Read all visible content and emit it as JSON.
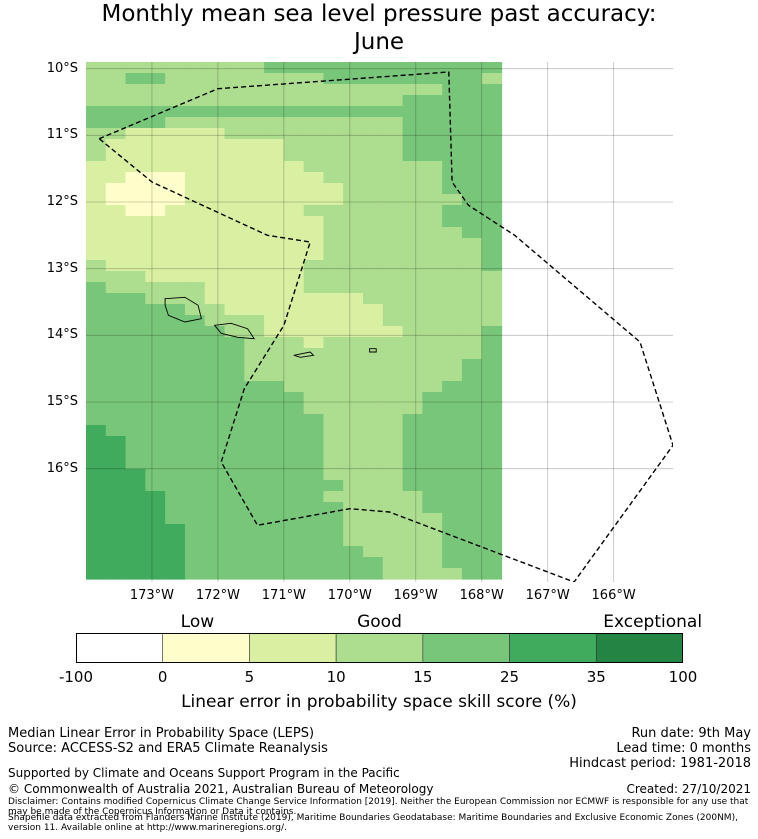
{
  "title_line1": "Monthly mean sea level pressure past accuracy:",
  "title_line2": "June",
  "map": {
    "lon_min": -174.0,
    "lon_max": -165.1,
    "lat_min": -17.7,
    "lat_max": -9.9,
    "lat_ticks": [
      {
        "v": -10,
        "label": "10°S"
      },
      {
        "v": -11,
        "label": "11°S"
      },
      {
        "v": -12,
        "label": "12°S"
      },
      {
        "v": -13,
        "label": "13°S"
      },
      {
        "v": -14,
        "label": "14°S"
      },
      {
        "v": -15,
        "label": "15°S"
      },
      {
        "v": -16,
        "label": "16°S"
      }
    ],
    "lon_ticks": [
      {
        "v": -173,
        "label": "173°W"
      },
      {
        "v": -172,
        "label": "172°W"
      },
      {
        "v": -171,
        "label": "171°W"
      },
      {
        "v": -170,
        "label": "170°W"
      },
      {
        "v": -169,
        "label": "169°W"
      },
      {
        "v": -168,
        "label": "168°W"
      },
      {
        "v": -167,
        "label": "167°W"
      },
      {
        "v": -166,
        "label": "166°W"
      }
    ],
    "eez_boundary": [
      [
        -173.8,
        -11.05
      ],
      [
        -172.0,
        -10.3
      ],
      [
        -168.5,
        -10.05
      ],
      [
        -168.45,
        -11.7
      ],
      [
        -168.2,
        -12.05
      ],
      [
        -167.5,
        -12.5
      ],
      [
        -165.6,
        -14.1
      ],
      [
        -165.1,
        -15.65
      ],
      [
        -166.6,
        -17.7
      ],
      [
        -169.4,
        -16.65
      ],
      [
        -170.0,
        -16.6
      ],
      [
        -171.4,
        -16.85
      ],
      [
        -171.95,
        -15.9
      ],
      [
        -171.6,
        -14.8
      ],
      [
        -171.0,
        -13.85
      ],
      [
        -170.6,
        -12.6
      ],
      [
        -171.25,
        -12.5
      ],
      [
        -173.0,
        -11.7
      ],
      [
        -173.8,
        -11.05
      ]
    ],
    "islands": [
      {
        "name": "Savaii",
        "pts": [
          [
            -172.8,
            -13.45
          ],
          [
            -172.5,
            -13.43
          ],
          [
            -172.3,
            -13.55
          ],
          [
            -172.25,
            -13.75
          ],
          [
            -172.5,
            -13.8
          ],
          [
            -172.75,
            -13.7
          ],
          [
            -172.8,
            -13.55
          ]
        ]
      },
      {
        "name": "Upolu",
        "pts": [
          [
            -172.05,
            -13.85
          ],
          [
            -171.8,
            -13.82
          ],
          [
            -171.55,
            -13.9
          ],
          [
            -171.45,
            -14.05
          ],
          [
            -171.7,
            -14.03
          ],
          [
            -171.95,
            -13.97
          ]
        ]
      },
      {
        "name": "Tutuila",
        "pts": [
          [
            -170.85,
            -14.3
          ],
          [
            -170.6,
            -14.25
          ],
          [
            -170.55,
            -14.3
          ],
          [
            -170.75,
            -14.33
          ]
        ]
      },
      {
        "name": "Manua",
        "pts": [
          [
            -169.7,
            -14.2
          ],
          [
            -169.6,
            -14.2
          ],
          [
            -169.6,
            -14.25
          ],
          [
            -169.7,
            -14.25
          ]
        ]
      }
    ],
    "grid_rows": {
      "lat_top": -9.9,
      "row_h": 0.165,
      "lon_left": -174.0,
      "col_w": 0.3,
      "rows": [
        "333333333444444444444",
        "334433333333444444443",
        "333333333333333333444",
        "333333333333333344444",
        "444444444444444444444",
        "444433333333333344444",
        "332222233333333344444",
        "322222222233333344444",
        "322222222233333344444",
        "222222222223333333444",
        "221112222222333333444",
        "211112222222233333444",
        "211112222222233333344",
        "221122222223333333444",
        "222222222222333333444",
        "222222222222333333344",
        "222222222222333333334",
        "222222222222333333334",
        "322222222223333333334",
        "333222222223333333333",
        "433333222223333333333",
        "444333222222223333333",
        "444443322222222333333",
        "444444333222222333333",
        "444444433222222233334",
        "444444443332333333334",
        "444444443333333333334",
        "444444443333333333344",
        "444444443333333333344",
        "444444444433333333444",
        "444444444443333334444",
        "444444444443333334444",
        "444444444444333344444",
        "544444444444333344444",
        "554444444444333344444",
        "554444444444333344444",
        "554444444444333344444",
        "555444444444333344444",
        "555444444444433344444",
        "555544444444333334444",
        "555544444444433334444",
        "555544444444433333444",
        "555554444444433333444",
        "555554444444433333444",
        "555554444444443333444",
        "555554444444444333444",
        "555554444444444333344"
      ]
    }
  },
  "colorbar": {
    "bins": [
      {
        "from": 0,
        "to": 1,
        "color": "#ffffff"
      },
      {
        "from": 1,
        "to": 2,
        "color": "#ffffcc"
      },
      {
        "from": 2,
        "to": 3,
        "color": "#d9f0a3"
      },
      {
        "from": 3,
        "to": 4,
        "color": "#addd8e"
      },
      {
        "from": 4,
        "to": 5,
        "color": "#78c679"
      },
      {
        "from": 5,
        "to": 6,
        "color": "#41ab5d"
      },
      {
        "from": 6,
        "to": 7,
        "color": "#238443"
      }
    ],
    "ticks": [
      "-100",
      "0",
      "5",
      "10",
      "15",
      "25",
      "35",
      "100"
    ],
    "categories": [
      {
        "label": "Low",
        "at": 1.4
      },
      {
        "label": "Good",
        "at": 3.5
      },
      {
        "label": "Exceptional",
        "at": 6.65
      }
    ],
    "label": "Linear error in probability space skill score (%)"
  },
  "info": {
    "method": "Median Linear Error in Probability Space (LEPS)",
    "source": "Source: ACCESS-S2 and ERA5 Climate Reanalysis",
    "run_date": "Run date: 9th May",
    "lead_time": "Lead time: 0 months",
    "hindcast": "Hindcast period: 1981-2018",
    "supported": "Supported by Climate and Oceans Support Program in the Pacific",
    "copyright": "© Commonwealth of Australia 2021, Australian Bureau of Meteorology",
    "created": "Created: 27/10/2021",
    "disclaimer": "Disclaimer: Contains modified Copernicus Climate Change Service Information [2019]. Neither the European Commission nor ECMWF is responsible for any use that may be made of the Copernicus Information or Data it contains.",
    "shapefile": "Shapefile data extracted from Flanders Marine Institute (2019), Maritime Boundaries Geodatabase: Maritime Boundaries and Exclusive Economic Zones (200NM), version 11. Available online at http://www.marineregions.org/."
  }
}
